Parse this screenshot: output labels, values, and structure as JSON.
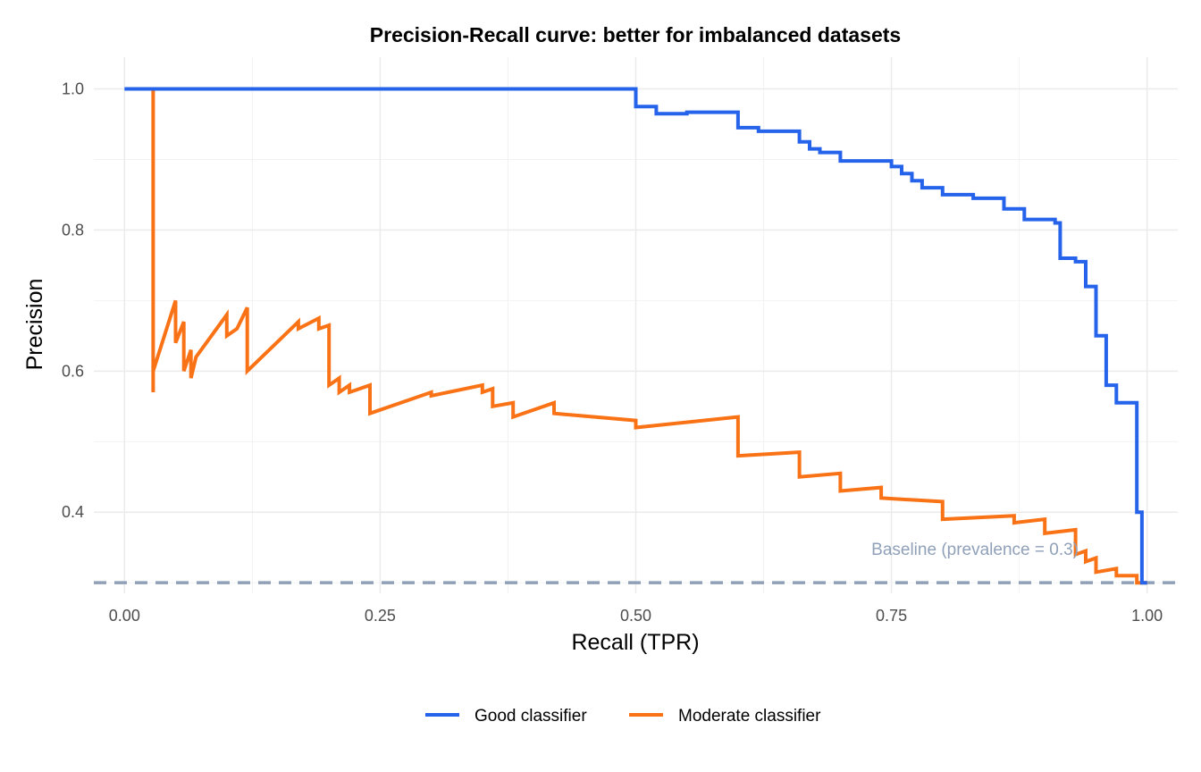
{
  "chart_data": {
    "type": "line",
    "title": "Precision-Recall curve: better for imbalanced datasets",
    "xlabel": "Recall (TPR)",
    "ylabel": "Precision",
    "xlim": [
      -0.03,
      1.03
    ],
    "ylim": [
      0.285,
      1.045
    ],
    "x_ticks": [
      0.0,
      0.25,
      0.5,
      0.75,
      1.0
    ],
    "x_tick_labels": [
      "0.00",
      "0.25",
      "0.50",
      "0.75",
      "1.00"
    ],
    "y_ticks": [
      0.4,
      0.6,
      0.8,
      1.0
    ],
    "y_tick_labels": [
      "0.4",
      "0.6",
      "0.8",
      "1.0"
    ],
    "grid": true,
    "legend_position": "bottom",
    "baseline": {
      "y": 0.3,
      "label": "Baseline (prevalence = 0.3)",
      "color": "#8fa0b8",
      "dash": true
    },
    "series": [
      {
        "name": "Good classifier",
        "color": "#2563eb",
        "step": true,
        "x": [
          0.0,
          0.5,
          0.5,
          0.52,
          0.52,
          0.55,
          0.55,
          0.6,
          0.6,
          0.62,
          0.62,
          0.66,
          0.66,
          0.67,
          0.67,
          0.68,
          0.68,
          0.7,
          0.7,
          0.75,
          0.75,
          0.76,
          0.76,
          0.77,
          0.77,
          0.78,
          0.78,
          0.8,
          0.8,
          0.83,
          0.83,
          0.86,
          0.86,
          0.88,
          0.88,
          0.91,
          0.91,
          0.915,
          0.915,
          0.93,
          0.93,
          0.94,
          0.94,
          0.95,
          0.95,
          0.96,
          0.96,
          0.97,
          0.97,
          0.99,
          0.99,
          0.995,
          0.995,
          1.0
        ],
        "y": [
          1.0,
          1.0,
          0.975,
          0.975,
          0.965,
          0.965,
          0.967,
          0.967,
          0.945,
          0.945,
          0.94,
          0.94,
          0.925,
          0.925,
          0.915,
          0.915,
          0.91,
          0.91,
          0.898,
          0.898,
          0.89,
          0.89,
          0.88,
          0.88,
          0.87,
          0.87,
          0.86,
          0.86,
          0.85,
          0.85,
          0.845,
          0.845,
          0.83,
          0.83,
          0.815,
          0.815,
          0.81,
          0.81,
          0.76,
          0.76,
          0.755,
          0.755,
          0.72,
          0.72,
          0.65,
          0.65,
          0.58,
          0.58,
          0.555,
          0.555,
          0.4,
          0.4,
          0.3,
          0.3
        ]
      },
      {
        "name": "Moderate classifier",
        "color": "#f97316",
        "step": false,
        "x": [
          0.01,
          0.028,
          0.028,
          0.028,
          0.05,
          0.05,
          0.058,
          0.058,
          0.065,
          0.065,
          0.07,
          0.07,
          0.1,
          0.1,
          0.11,
          0.12,
          0.12,
          0.17,
          0.17,
          0.19,
          0.19,
          0.2,
          0.2,
          0.21,
          0.21,
          0.22,
          0.22,
          0.24,
          0.24,
          0.3,
          0.3,
          0.35,
          0.35,
          0.36,
          0.36,
          0.38,
          0.38,
          0.42,
          0.42,
          0.5,
          0.5,
          0.6,
          0.6,
          0.66,
          0.66,
          0.7,
          0.7,
          0.74,
          0.74,
          0.8,
          0.8,
          0.87,
          0.87,
          0.9,
          0.9,
          0.93,
          0.93,
          0.94,
          0.94,
          0.95,
          0.95,
          0.97,
          0.97,
          0.99,
          0.99,
          1.0
        ],
        "y": [
          1.0,
          1.0,
          0.57,
          0.6,
          0.7,
          0.64,
          0.67,
          0.6,
          0.63,
          0.59,
          0.62,
          0.62,
          0.68,
          0.65,
          0.66,
          0.69,
          0.6,
          0.67,
          0.66,
          0.675,
          0.66,
          0.665,
          0.58,
          0.59,
          0.57,
          0.58,
          0.57,
          0.58,
          0.54,
          0.57,
          0.565,
          0.58,
          0.57,
          0.575,
          0.55,
          0.555,
          0.535,
          0.555,
          0.54,
          0.53,
          0.52,
          0.535,
          0.48,
          0.485,
          0.45,
          0.455,
          0.43,
          0.435,
          0.42,
          0.415,
          0.39,
          0.395,
          0.385,
          0.39,
          0.37,
          0.375,
          0.34,
          0.345,
          0.33,
          0.335,
          0.315,
          0.32,
          0.31,
          0.31,
          0.3,
          0.3
        ]
      }
    ]
  }
}
